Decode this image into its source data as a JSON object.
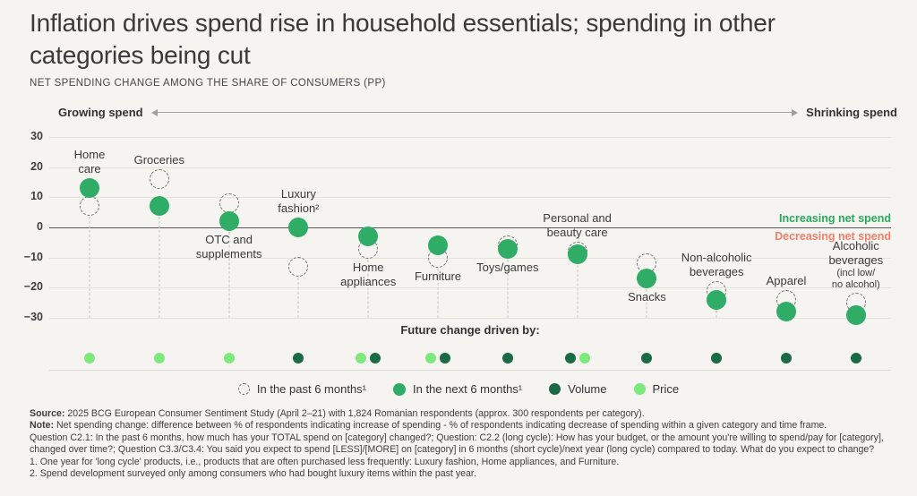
{
  "title": "Inflation drives spend rise in household essentials; spending in other categories being cut",
  "subtitle": "NET SPENDING CHANGE AMONG THE SHARE OF CONSUMERS (PP)",
  "axis_header": {
    "left": "Growing spend",
    "right": "Shrinking spend"
  },
  "annotations": {
    "increasing": "Increasing net spend",
    "decreasing": "Decreasing net spend"
  },
  "future_label": "Future change driven by:",
  "legend": [
    {
      "key": "past",
      "label": "In the past 6 months¹"
    },
    {
      "key": "next",
      "label": "In the next 6 months¹"
    },
    {
      "key": "volume",
      "label": "Volume"
    },
    {
      "key": "price",
      "label": "Price"
    }
  ],
  "colors": {
    "background": "#f5f4f1",
    "next_green": "#2fac66",
    "dark_green": "#1a6b45",
    "light_green": "#7de87c",
    "increasing_text": "#2aa95e",
    "decreasing_text": "#f47f6b"
  },
  "chart_data": {
    "type": "scatter",
    "title": "NET SPENDING CHANGE AMONG THE SHARE OF CONSUMERS (PP)",
    "xlabel": "",
    "ylabel": "Net spending change (pp)",
    "ylim": [
      -30,
      30
    ],
    "yticks": [
      30,
      20,
      10,
      0,
      -10,
      -20,
      -30
    ],
    "grid": true,
    "legend_position": "bottom",
    "categories": [
      "Home care",
      "Groceries",
      "OTC and supplements",
      "Luxury fashion",
      "Home appliances",
      "Furniture",
      "Toys/games",
      "Personal and beauty care",
      "Snacks",
      "Non-alcoholic beverages",
      "Apparel",
      "Alcoholic beverages (incl low/no alcohol)"
    ],
    "series": [
      {
        "name": "In the past 6 months",
        "values": [
          7,
          16,
          8,
          -13,
          -7,
          -10,
          -6,
          -8,
          -12,
          -21,
          -24,
          -25
        ]
      },
      {
        "name": "In the next 6 months",
        "values": [
          13,
          7,
          2,
          0,
          -3,
          -6,
          -7,
          -9,
          -17,
          -24,
          -28,
          -29
        ]
      }
    ],
    "drivers": [
      [
        "price"
      ],
      [
        "price"
      ],
      [
        "price"
      ],
      [
        "volume"
      ],
      [
        "price",
        "volume"
      ],
      [
        "price",
        "volume"
      ],
      [
        "volume"
      ],
      [
        "volume",
        "price"
      ],
      [
        "volume"
      ],
      [
        "volume"
      ],
      [
        "volume"
      ],
      [
        "volume"
      ]
    ],
    "label_layout": [
      {
        "pos": "above",
        "lines": [
          "Home",
          "care"
        ]
      },
      {
        "pos": "above",
        "lines": [
          "Groceries"
        ]
      },
      {
        "pos": "below",
        "lines": [
          "OTC and",
          "supplements"
        ]
      },
      {
        "pos": "above",
        "lines": [
          "Luxury",
          "fashion²"
        ]
      },
      {
        "pos": "below",
        "lines": [
          "Home",
          "appliances"
        ]
      },
      {
        "pos": "below",
        "lines": [
          "Furniture"
        ]
      },
      {
        "pos": "below",
        "lines": [
          "Toys/games"
        ]
      },
      {
        "pos": "above",
        "lines": [
          "Personal and",
          "beauty care"
        ]
      },
      {
        "pos": "below",
        "lines": [
          "Snacks"
        ]
      },
      {
        "pos": "above",
        "lines": [
          "Non-alcoholic",
          "beverages"
        ]
      },
      {
        "pos": "above",
        "lines": [
          "Apparel"
        ]
      },
      {
        "pos": "above",
        "lines": [
          "Alcoholic",
          "beverages"
        ],
        "sublines": [
          "(incl low/",
          "no alcohol)"
        ]
      }
    ]
  },
  "footer": {
    "source_label": "Source:",
    "source_text": "2025 BCG European Consumer Sentiment Study (April 2–21) with 1,824 Romanian respondents (approx. 300 respondents per category).",
    "note_label": "Note:",
    "note_text": "Net spending change: difference between % of respondents indicating increase of spending - % of respondents indicating decrease of spending within a given category and time frame.",
    "questions": "Question C2.1: In the past 6 months, how much has your TOTAL spend on [category] changed?; Question: C2.2 (long cycle): How has your budget, or the amount you're willing to spend/pay for [category], changed over time?; Question C3.3/C3.4: You said you expect to spend [LESS]/[MORE] on [category] in 6 months (short cycle)/next year (long cycle) compared to today. What do you expect to change?",
    "footnote1": "1. One year for 'long cycle' products, i.e., products that are often purchased less frequently: Luxury fashion, Home appliances, and Furniture.",
    "footnote2": "2. Spend development surveyed only among consumers who had bought luxury items within the past year."
  }
}
